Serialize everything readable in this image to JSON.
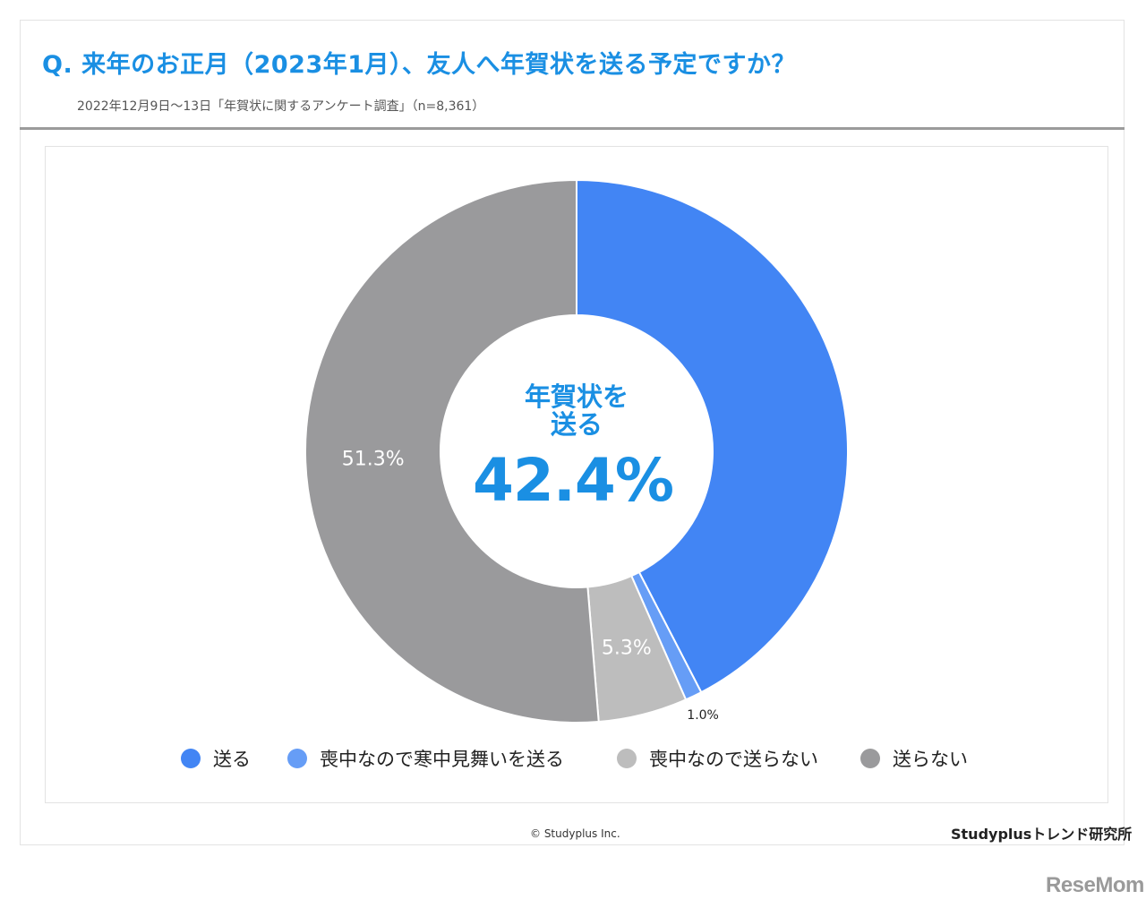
{
  "title": "Q. 来年のお正月（2023年1月）、友人へ年賀状を送る予定ですか？",
  "subtitle": "2022年12月9日～13日「年賀状に関するアンケート調査」（n=8,361）",
  "chart_data": {
    "type": "pie",
    "donut": true,
    "categories": [
      "送る",
      "喪中なので寒中見舞いを送る",
      "喪中なので送らない",
      "送らない"
    ],
    "values": [
      42.4,
      1.0,
      5.3,
      51.3
    ],
    "data_labels": [
      "",
      "1.0%",
      "5.3%",
      "51.3%"
    ],
    "colors": [
      "#4285f4",
      "#669df6",
      "#bdbdbd",
      "#9a9a9c"
    ],
    "center": {
      "label_line1": "年賀状を",
      "label_line2": "送る",
      "value": "42.4%"
    },
    "legend_position": "bottom"
  },
  "legend": [
    {
      "label": "送る",
      "color": "#4285f4"
    },
    {
      "label": "喪中なので寒中見舞いを送る",
      "color": "#669df6"
    },
    {
      "label": "喪中なので送らない",
      "color": "#bdbdbd"
    },
    {
      "label": "送らない",
      "color": "#9a9a9c"
    }
  ],
  "footer": {
    "copyright": "© Studyplus Inc.",
    "brand": "Studyplusトレンド研究所"
  },
  "watermark": "ReseMom"
}
